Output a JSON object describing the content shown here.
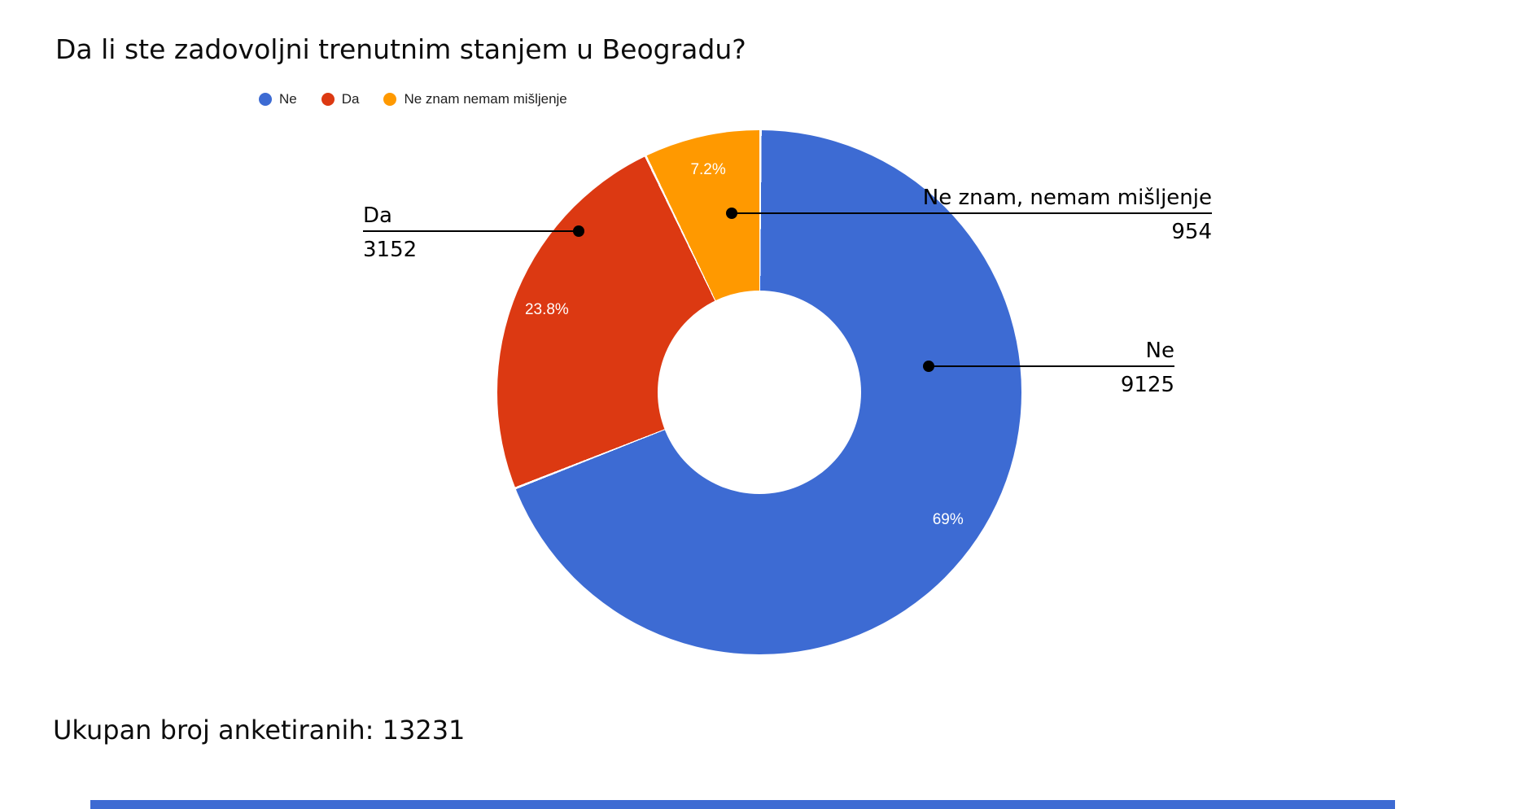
{
  "header": {
    "title": "Da li ste zadovoljni trenutnim stanjem u Beogradu?"
  },
  "legend": {
    "items": [
      {
        "label": "Ne",
        "color": "#3D6BD3"
      },
      {
        "label": "Da",
        "color": "#DC3912"
      },
      {
        "label": "Ne znam nemam mišljenje",
        "color": "#FF9900"
      }
    ]
  },
  "chart_data": {
    "type": "pie",
    "subtype": "donut",
    "title": "Da li ste zadovoljni trenutnim stanjem u Beogradu?",
    "categories": [
      "Ne",
      "Da",
      "Ne znam, nemam mišljenje"
    ],
    "values": [
      9125,
      3152,
      954
    ],
    "percent_labels": [
      "69%",
      "23.8%",
      "7.2%"
    ],
    "colors": [
      "#3D6BD3",
      "#DC3912",
      "#FF9900"
    ],
    "hole_ratio": 0.39,
    "start_angle_deg": 0,
    "direction": "clockwise",
    "total": 13231,
    "legend_position": "top",
    "slice_separator_color": "#ffffff"
  },
  "callouts": [
    {
      "label": "Da",
      "value": "3152",
      "anchor": "left"
    },
    {
      "label": "Ne znam, nemam mišljenje",
      "value": "954",
      "anchor": "right"
    },
    {
      "label": "Ne",
      "value": "9125",
      "anchor": "right"
    }
  ],
  "footer": {
    "text": "Ukupan broj anketiranih: 13231"
  },
  "accent": {
    "bottom_bar_color": "#3D6BD3"
  }
}
